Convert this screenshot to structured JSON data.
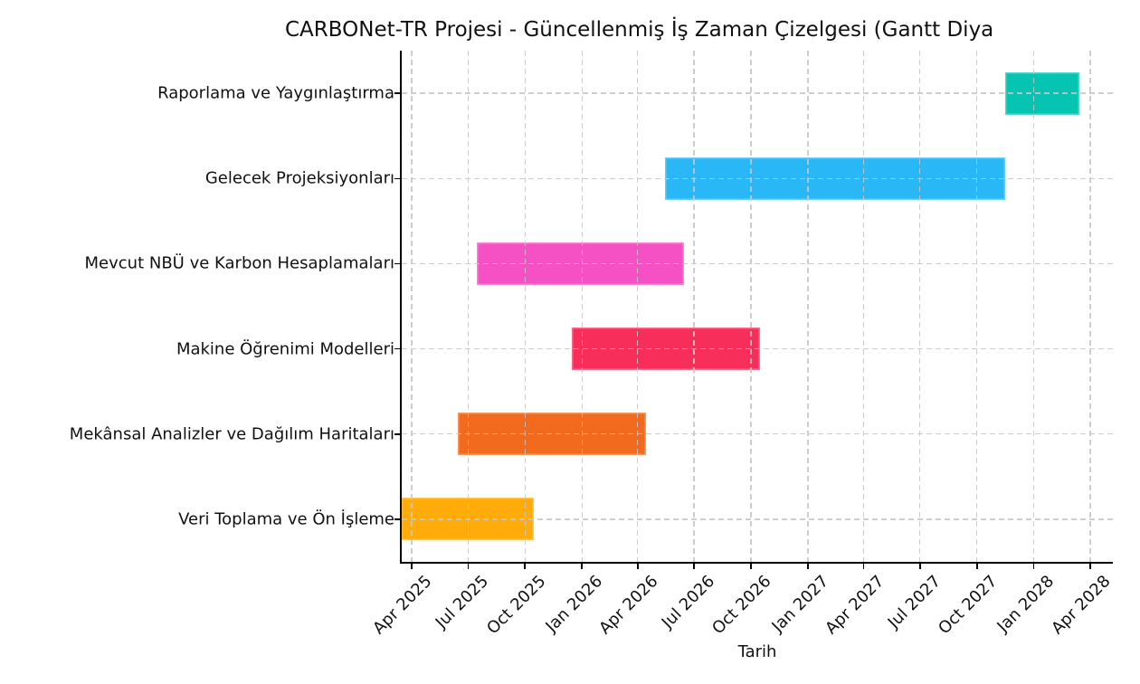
{
  "chart_data": {
    "type": "bar",
    "subtype": "gantt",
    "title": "CARBONet-TR Projesi - Güncellenmiş İş Zaman Çizelgesi (Gantt Diya",
    "xlabel": "Tarih",
    "ylabel": "",
    "legend": "none",
    "grid": "dashed, drawn above bars",
    "x_ticks": [
      {
        "label": "Apr 2025",
        "date": "2025-04-01"
      },
      {
        "label": "Jul 2025",
        "date": "2025-07-01"
      },
      {
        "label": "Oct 2025",
        "date": "2025-10-01"
      },
      {
        "label": "Jan 2026",
        "date": "2026-01-01"
      },
      {
        "label": "Apr 2026",
        "date": "2026-04-01"
      },
      {
        "label": "Jul 2026",
        "date": "2026-07-01"
      },
      {
        "label": "Oct 2026",
        "date": "2026-10-01"
      },
      {
        "label": "Jan 2027",
        "date": "2027-01-01"
      },
      {
        "label": "Apr 2027",
        "date": "2027-04-01"
      },
      {
        "label": "Jul 2027",
        "date": "2027-07-01"
      },
      {
        "label": "Oct 2027",
        "date": "2027-10-01"
      },
      {
        "label": "Jan 2028",
        "date": "2028-01-01"
      },
      {
        "label": "Apr 2028",
        "date": "2028-04-01"
      }
    ],
    "x_range": {
      "start": "2025-03-16",
      "end": "2028-05-08"
    },
    "tasks": [
      {
        "label": "Raporlama ve Yaygınlaştırma",
        "start": "2027-11-15",
        "end": "2028-03-15",
        "color": "#06c4b2"
      },
      {
        "label": "Gelecek Projeksiyonları",
        "start": "2026-05-15",
        "end": "2027-11-15",
        "color": "#29b8f5"
      },
      {
        "label": "Mevcut NBÜ ve Karbon Hesaplamaları",
        "start": "2025-07-15",
        "end": "2026-06-15",
        "color": "#f551c4"
      },
      {
        "label": "Makine Öğrenimi Modelleri",
        "start": "2025-12-15",
        "end": "2026-10-15",
        "color": "#f72e59"
      },
      {
        "label": "Mekânsal Analizler ve Dağılım Haritaları",
        "start": "2025-06-15",
        "end": "2026-04-15",
        "color": "#f26a1e"
      },
      {
        "label": "Veri Toplama ve Ön İşleme",
        "start": "2025-03-15",
        "end": "2025-10-15",
        "color": "#ffab09"
      }
    ]
  }
}
